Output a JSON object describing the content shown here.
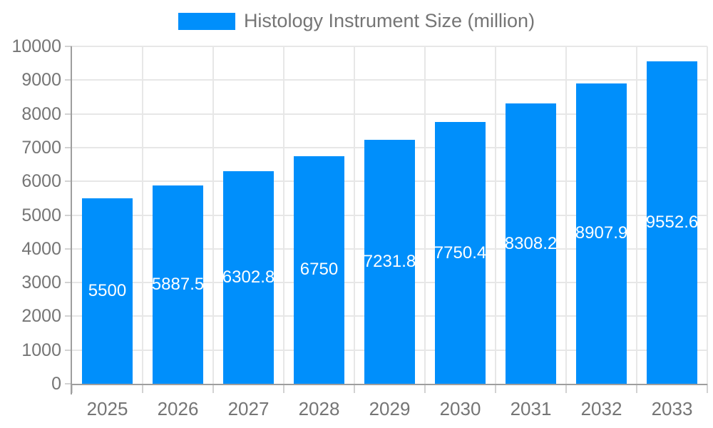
{
  "chart_data": {
    "type": "bar",
    "title": "Histology Instrument Size (million)",
    "legend": {
      "label": "Histology Instrument Size (million)",
      "position": "top"
    },
    "categories": [
      "2025",
      "2026",
      "2027",
      "2028",
      "2029",
      "2030",
      "2031",
      "2032",
      "2033"
    ],
    "series": [
      {
        "name": "Histology Instrument Size (million)",
        "values": [
          5500,
          5887.5,
          6302.8,
          6750,
          7231.8,
          7750.4,
          8308.2,
          8907.9,
          9552.6
        ],
        "data_labels": [
          "5500",
          "5887.5",
          "6302.8",
          "6750",
          "7231.8",
          "7750.4",
          "8308.2",
          "8907.9",
          "9552.6"
        ]
      }
    ],
    "xlabel": "",
    "ylabel": "",
    "ylim": [
      0,
      10000
    ],
    "ytick_step": 1000,
    "ytick_labels": [
      "0",
      "1000",
      "2000",
      "3000",
      "4000",
      "5000",
      "6000",
      "7000",
      "8000",
      "9000",
      "10000"
    ],
    "grid": true,
    "colors": {
      "bar": "#008FFB",
      "data_label_text": "#ffffff",
      "axis_text": "#757575",
      "gridline": "#e7e7e7",
      "tick": "#d2d2d2",
      "axis_line": "#9e9e9e",
      "background": "#ffffff"
    }
  }
}
